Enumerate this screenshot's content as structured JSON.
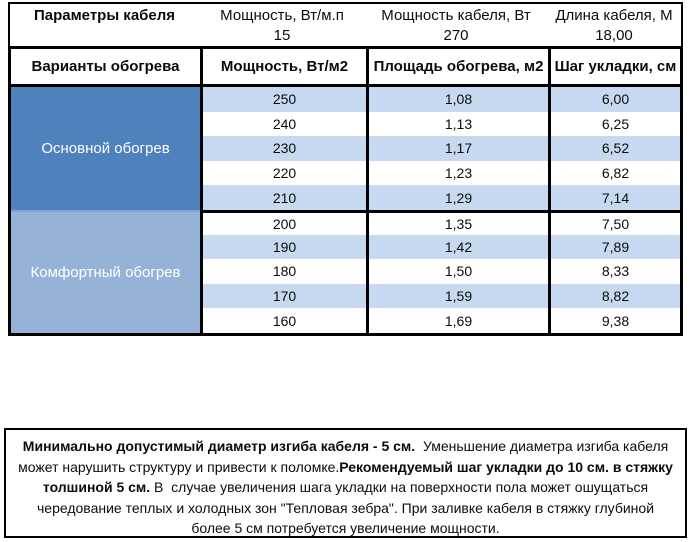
{
  "top_table": {
    "title": "Параметры кабеля",
    "columns": [
      {
        "label": "Мощность, Вт/м.п",
        "value": "15"
      },
      {
        "label": "Мощность кабеля, Вт",
        "value": "270"
      },
      {
        "label": "Длина кабеля, М",
        "value": "18,00"
      }
    ]
  },
  "main_table": {
    "headers": [
      "Варианты обогрева",
      "Мощность, Вт/м2",
      "Площадь обогрева, м2",
      "Шаг укладки, см"
    ],
    "groups": [
      {
        "label": "Основной обогрев",
        "color": "#4f81bd"
      },
      {
        "label": "Комфортный обогрев",
        "color": "#95b3d7"
      }
    ],
    "stripe_color": "#c6d9f1",
    "rows": [
      {
        "power": "250",
        "area": "1,08",
        "step": "6,00"
      },
      {
        "power": "240",
        "area": "1,13",
        "step": "6,25"
      },
      {
        "power": "230",
        "area": "1,17",
        "step": "6,52"
      },
      {
        "power": "220",
        "area": "1,23",
        "step": "6,82"
      },
      {
        "power": "210",
        "area": "1,29",
        "step": "7,14"
      },
      {
        "power": "200",
        "area": "1,35",
        "step": "7,50"
      },
      {
        "power": "190",
        "area": "1,42",
        "step": "7,89"
      },
      {
        "power": "180",
        "area": "1,50",
        "step": "8,33"
      },
      {
        "power": "170",
        "area": "1,59",
        "step": "8,82"
      },
      {
        "power": "160",
        "area": "1,69",
        "step": "9,38"
      }
    ]
  },
  "note": {
    "bold_1": "Минимально допустимый диаметр изгиба кабеля - 5 см.",
    "text_1": "  Уменьшение диаметра изгиба кабеля может нарушить структуру и привести к поломке.",
    "bold_2": "Рекомендуемый шаг укладки до 10 см. в стяжку толшиной 5 см.",
    "text_2": " В  случае увеличения шага укладки на поверхности пола может ошущаться чередование теплых и холодных зон \"Тепловая зебра\". При заливке кабеля в стяжку глубиной более 5 см потребуется увеличение мощности."
  }
}
